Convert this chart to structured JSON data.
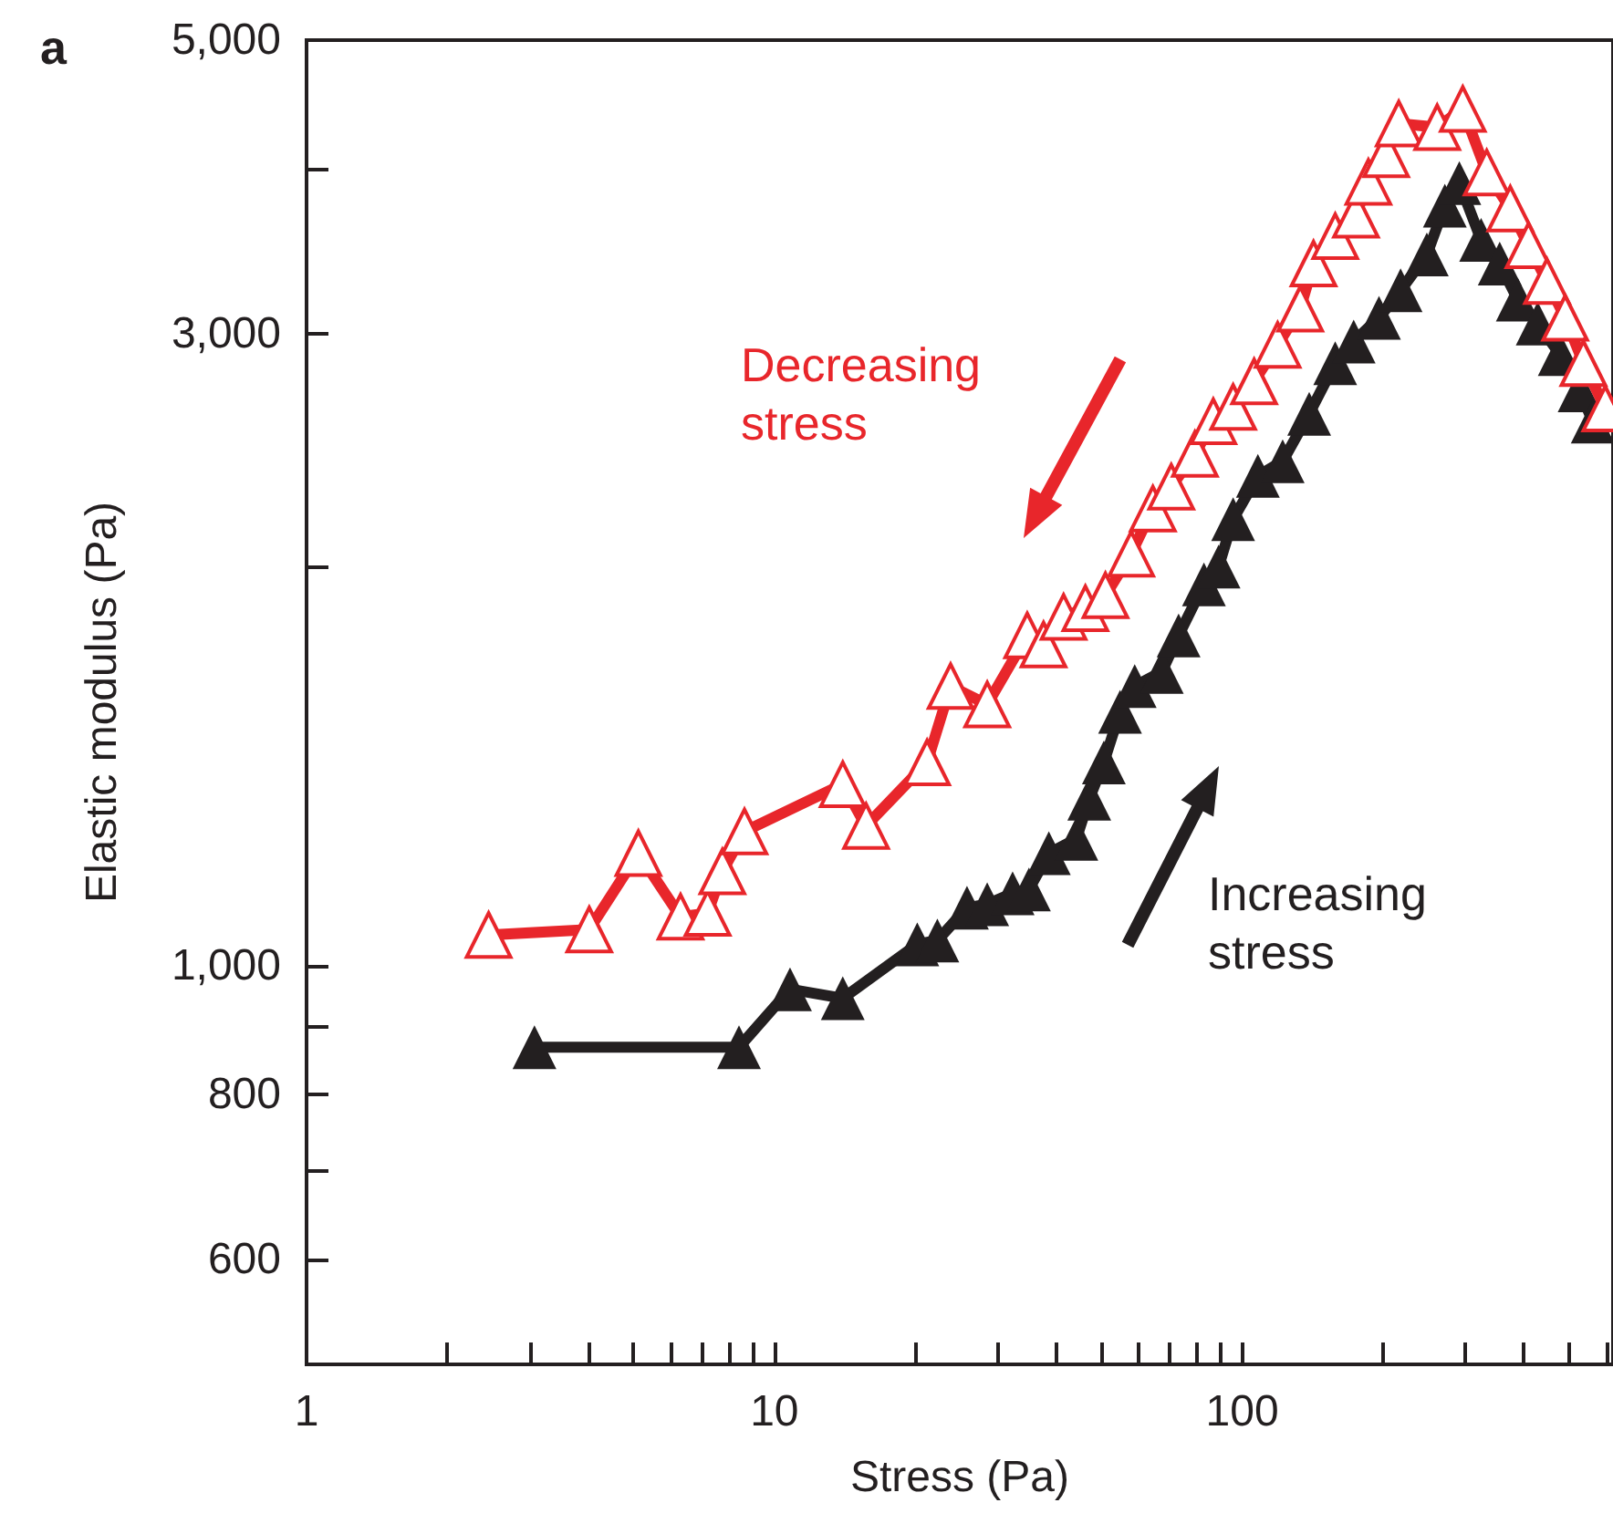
{
  "chart_data": {
    "type": "line",
    "xlabel": "Stress (Pa)",
    "ylabel": "Elastic modulus (Pa)",
    "log": "xy",
    "marker": "triangle",
    "line_style": "solid",
    "xlim": [
      1,
      620
    ],
    "ylim": [
      500,
      5000
    ],
    "xticks": [
      1,
      {
        "value": 2,
        "label": null
      },
      {
        "value": 3,
        "label": null
      },
      {
        "value": 4,
        "label": null
      },
      {
        "value": 5,
        "label": null
      },
      {
        "value": 6,
        "label": null
      },
      {
        "value": 7,
        "label": null
      },
      {
        "value": 8,
        "label": null
      },
      {
        "value": 9,
        "label": null
      },
      10,
      {
        "value": 20,
        "label": null
      },
      {
        "value": 30,
        "label": null
      },
      {
        "value": 40,
        "label": null
      },
      {
        "value": 50,
        "label": null
      },
      {
        "value": 60,
        "label": null
      },
      {
        "value": 70,
        "label": null
      },
      {
        "value": 80,
        "label": null
      },
      {
        "value": 90,
        "label": null
      },
      100,
      {
        "value": 200,
        "label": null
      },
      {
        "value": 300,
        "label": null
      },
      {
        "value": 400,
        "label": null
      },
      {
        "value": 500,
        "label": null
      },
      {
        "value": 600,
        "label": null
      }
    ],
    "yticks": [
      600,
      {
        "value": 700,
        "label": null
      },
      800,
      {
        "value": 900,
        "label": null
      },
      {
        "value": 1000,
        "label": "1,000"
      },
      {
        "value": 2000,
        "label": null
      },
      {
        "value": 3000,
        "label": "3,000"
      },
      {
        "value": 4000,
        "label": null
      },
      {
        "value": 5000,
        "label": "5,000"
      }
    ],
    "annotations": [
      "a",
      "Decreasing\nstress",
      "Increasing\nstress"
    ],
    "series": [
      {
        "color": "#e8262b",
        "x": [
          2.45,
          4.02,
          5.12,
          6.3,
          7.2,
          7.74,
          8.63,
          14.0,
          15.7,
          21.2,
          23.8,
          28.5,
          34.7,
          37.6,
          41.5,
          46.2,
          51.0,
          57.9,
          64.4,
          70.5,
          79.2,
          86.7,
          95.6,
          106,
          119,
          133,
          142,
          158,
          175,
          186,
          203,
          216,
          261,
          296,
          333,
          374,
          409,
          448,
          490,
          536,
          597
        ],
        "values": [
          1055,
          1065,
          1216,
          1089,
          1096,
          1178,
          1263,
          1371,
          1275,
          1424,
          1626,
          1575,
          1776,
          1748,
          1834,
          1862,
          1904,
          2047,
          2214,
          2300,
          2435,
          2577,
          2642,
          2762,
          2943,
          3134,
          3390,
          3556,
          3690,
          3908,
          4100,
          4325,
          4297,
          4436,
          3972,
          3730,
          3499,
          3288,
          3085,
          2851,
          2635
        ]
      },
      {
        "color": "#231f20",
        "x": [
          3.07,
          8.4,
          10.8,
          14.0,
          20.2,
          22.3,
          25.8,
          28.5,
          32.3,
          35.0,
          38.6,
          44.2,
          47.1,
          50.6,
          54.8,
          58.9,
          67.3,
          73.1,
          82.8,
          89.0,
          95.6,
          108,
          122,
          139,
          158,
          173,
          196,
          218,
          248,
          271,
          291,
          324,
          355,
          388,
          428,
          477,
          526,
          561
        ],
        "values": [
          868,
          868,
          960,
          945,
          1038,
          1045,
          1106,
          1113,
          1134,
          1142,
          1216,
          1247,
          1337,
          1424,
          1555,
          1626,
          1667,
          1776,
          1941,
          2002,
          2174,
          2344,
          2404,
          2611,
          2851,
          2961,
          3085,
          3236,
          3444,
          3750,
          3900,
          3533,
          3390,
          3184,
          3055,
          2897,
          2720,
          2576
        ]
      }
    ]
  }
}
